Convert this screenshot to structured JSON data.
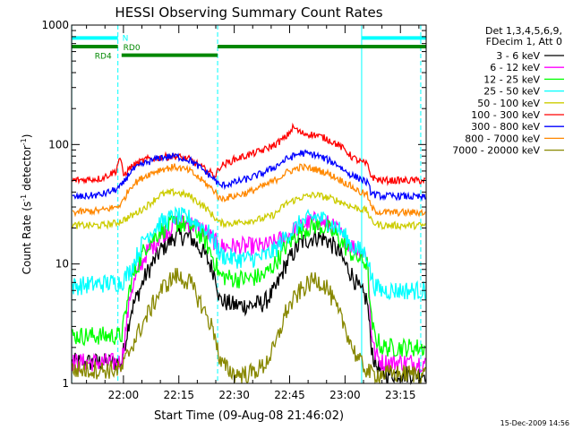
{
  "chart_data": {
    "type": "line",
    "title": "HESSI Observing Summary Count Rates",
    "xlabel": "Start Time (09-Aug-08 21:46:02)",
    "ylabel_main": "Count Rate (s",
    "ylabel_sup1": "-1",
    "ylabel_mid": " detector",
    "ylabel_sup2": "-1",
    "ylabel_end": ")",
    "yscale": "log",
    "ylim": [
      1,
      1000
    ],
    "xlim_minutes": [
      -14.03,
      81.97
    ],
    "x_ticks": [
      {
        "label": "22:00",
        "min": 0
      },
      {
        "label": "22:15",
        "min": 15
      },
      {
        "label": "22:30",
        "min": 30
      },
      {
        "label": "22:45",
        "min": 45
      },
      {
        "label": "23:00",
        "min": 60
      },
      {
        "label": "23:15",
        "min": 75
      }
    ],
    "y_ticks": [
      {
        "label": "1",
        "value": 1
      },
      {
        "label": "10",
        "value": 10
      },
      {
        "label": "100",
        "value": 100
      },
      {
        "label": "1000",
        "value": 1000
      }
    ],
    "legend_header": [
      "Det 1,3,4,5,6,9,",
      "FDecim 1, Att 0"
    ],
    "legend_placement": "right",
    "series": [
      {
        "name": "3 - 6 keV",
        "color": "#000000",
        "x": [
          -14,
          -2,
          -0.5,
          2,
          6,
          10,
          14,
          18,
          22,
          25,
          26,
          30,
          34,
          38,
          41,
          44,
          48,
          52,
          55,
          58,
          60,
          62,
          64,
          66,
          67,
          68,
          70,
          75,
          82
        ],
        "y": [
          1.5,
          1.5,
          1.5,
          4,
          8,
          13,
          17,
          17,
          12,
          8,
          5,
          4.5,
          4.5,
          4.7,
          6,
          10,
          15,
          17,
          16,
          13,
          10,
          8,
          6,
          5,
          2.2,
          1.5,
          1.2,
          1.2,
          1.2
        ]
      },
      {
        "name": "6 - 12 keV",
        "color": "#ff00ff",
        "x": [
          -14,
          -2,
          -0.5,
          2,
          6,
          10,
          14,
          18,
          22,
          25,
          26,
          30,
          34,
          38,
          41,
          44,
          48,
          52,
          55,
          58,
          60,
          62,
          64,
          66,
          67,
          68,
          70,
          75,
          82
        ],
        "y": [
          1.5,
          1.5,
          1.5,
          6,
          12,
          17,
          22,
          22,
          19,
          15,
          14,
          14,
          14,
          14,
          15,
          17,
          21,
          23,
          22,
          19,
          16,
          14,
          13,
          12,
          3,
          1.8,
          1.5,
          1.5,
          1.5
        ]
      },
      {
        "name": "12 - 25 keV",
        "color": "#00ff00",
        "x": [
          -14,
          -2,
          -0.5,
          2,
          6,
          10,
          14,
          18,
          22,
          25,
          26,
          30,
          34,
          38,
          41,
          44,
          48,
          52,
          55,
          58,
          60,
          62,
          64,
          66,
          67,
          68,
          70,
          75,
          82
        ],
        "y": [
          2.5,
          2.5,
          2.5,
          7,
          14,
          19,
          22,
          21,
          16,
          10,
          8,
          7.5,
          7.5,
          8,
          10,
          14,
          19,
          21,
          20,
          17,
          14,
          12,
          11,
          10,
          3.5,
          2.5,
          2,
          2,
          2
        ]
      },
      {
        "name": "25 - 50 keV",
        "color": "#00ffff",
        "x": [
          -14,
          -2,
          -0.5,
          2,
          6,
          10,
          14,
          18,
          22,
          25,
          26,
          30,
          34,
          38,
          41,
          44,
          48,
          52,
          55,
          58,
          60,
          62,
          64,
          66,
          67,
          68,
          70,
          75,
          82
        ],
        "y": [
          6.5,
          7,
          7,
          9,
          17,
          22,
          25,
          24,
          20,
          15,
          12,
          11,
          11,
          11.5,
          13,
          17,
          22,
          25,
          23,
          20,
          17,
          14,
          13,
          12,
          8,
          6.5,
          6,
          6,
          6
        ]
      },
      {
        "name": "50 - 100 keV",
        "color": "#cccc00",
        "x": [
          -14,
          -6,
          -2,
          -0.5,
          2,
          6,
          10,
          14,
          18,
          22,
          25,
          26,
          30,
          34,
          38,
          41,
          44,
          48,
          52,
          55,
          58,
          60,
          62,
          64,
          66,
          67,
          68,
          70,
          75,
          82
        ],
        "y": [
          21,
          21,
          22,
          23,
          25,
          30,
          38,
          40,
          37,
          30,
          24,
          22,
          22,
          23,
          24,
          26,
          32,
          36,
          38,
          36,
          34,
          32,
          30,
          29,
          28,
          23,
          22,
          21,
          21,
          21
        ]
      },
      {
        "name": "100 - 300 keV",
        "color": "#ff0000",
        "x": [
          -14,
          -6,
          -2,
          -1,
          0,
          2,
          6,
          10,
          14,
          18,
          22,
          25,
          26,
          30,
          34,
          38,
          41,
          44,
          46,
          48,
          52,
          55,
          58,
          60,
          62,
          64,
          66,
          67,
          68,
          70,
          75,
          82
        ],
        "y": [
          50,
          52,
          60,
          80,
          55,
          65,
          75,
          78,
          80,
          75,
          62,
          55,
          65,
          75,
          82,
          90,
          100,
          115,
          140,
          125,
          120,
          112,
          100,
          90,
          78,
          72,
          68,
          55,
          52,
          50,
          50,
          50
        ]
      },
      {
        "name": "300 - 800 keV",
        "color": "#0000ff",
        "x": [
          -14,
          -6,
          -2,
          -0.5,
          2,
          6,
          10,
          14,
          18,
          22,
          25,
          26,
          30,
          34,
          38,
          41,
          44,
          48,
          52,
          55,
          58,
          60,
          62,
          64,
          66,
          67,
          68,
          70,
          75,
          82
        ],
        "y": [
          36,
          38,
          42,
          45,
          60,
          70,
          78,
          80,
          74,
          60,
          50,
          45,
          48,
          52,
          58,
          65,
          75,
          85,
          82,
          75,
          68,
          60,
          55,
          52,
          48,
          40,
          38,
          37,
          37,
          36
        ]
      },
      {
        "name": "800 - 7000 keV",
        "color": "#ff8800",
        "x": [
          -14,
          -6,
          -2,
          -0.5,
          2,
          6,
          10,
          14,
          18,
          22,
          25,
          26,
          30,
          34,
          38,
          41,
          44,
          48,
          52,
          55,
          58,
          60,
          62,
          64,
          66,
          67,
          68,
          70,
          75,
          82
        ],
        "y": [
          27,
          28,
          30,
          32,
          45,
          55,
          62,
          65,
          60,
          48,
          40,
          35,
          37,
          40,
          45,
          50,
          58,
          65,
          62,
          58,
          52,
          48,
          44,
          40,
          38,
          30,
          28,
          27,
          27,
          27
        ]
      },
      {
        "name": "7000 - 20000 keV",
        "color": "#888800",
        "x": [
          -14,
          -2,
          -0.5,
          2,
          6,
          10,
          14,
          18,
          22,
          25,
          26,
          30,
          34,
          38,
          41,
          44,
          48,
          52,
          55,
          58,
          60,
          62,
          64,
          66,
          67,
          68,
          70,
          75,
          82
        ],
        "y": [
          1.3,
          1.3,
          1.3,
          2,
          3.5,
          6,
          8,
          7,
          4,
          2.5,
          1.5,
          1.2,
          1.2,
          1.4,
          2,
          4,
          6,
          7.5,
          6.5,
          4,
          3,
          2,
          1.5,
          1.3,
          1.2,
          1.2,
          1.2,
          1.2,
          1.2
        ]
      }
    ],
    "status_bars": [
      {
        "label": "N",
        "color": "#00ffff",
        "segments": [
          [
            -14,
            -1.5
          ],
          [
            64.5,
            82
          ]
        ],
        "value": 780
      },
      {
        "label": "RD0",
        "color": "#008800",
        "segments": [
          [
            -14,
            -1.5
          ],
          [
            25.5,
            82
          ]
        ],
        "value": 660
      },
      {
        "label": "RD4",
        "color": "#008800",
        "segments": [
          [
            -0.5,
            25.5
          ]
        ],
        "value": 560
      }
    ],
    "vlines_solid": [
      -14,
      64.5
    ],
    "vlines_dashed": [
      -1.5,
      25.5,
      80.5
    ],
    "vline_color": "#00ffff"
  },
  "footer_timestamp": "15-Dec-2009 14:56"
}
